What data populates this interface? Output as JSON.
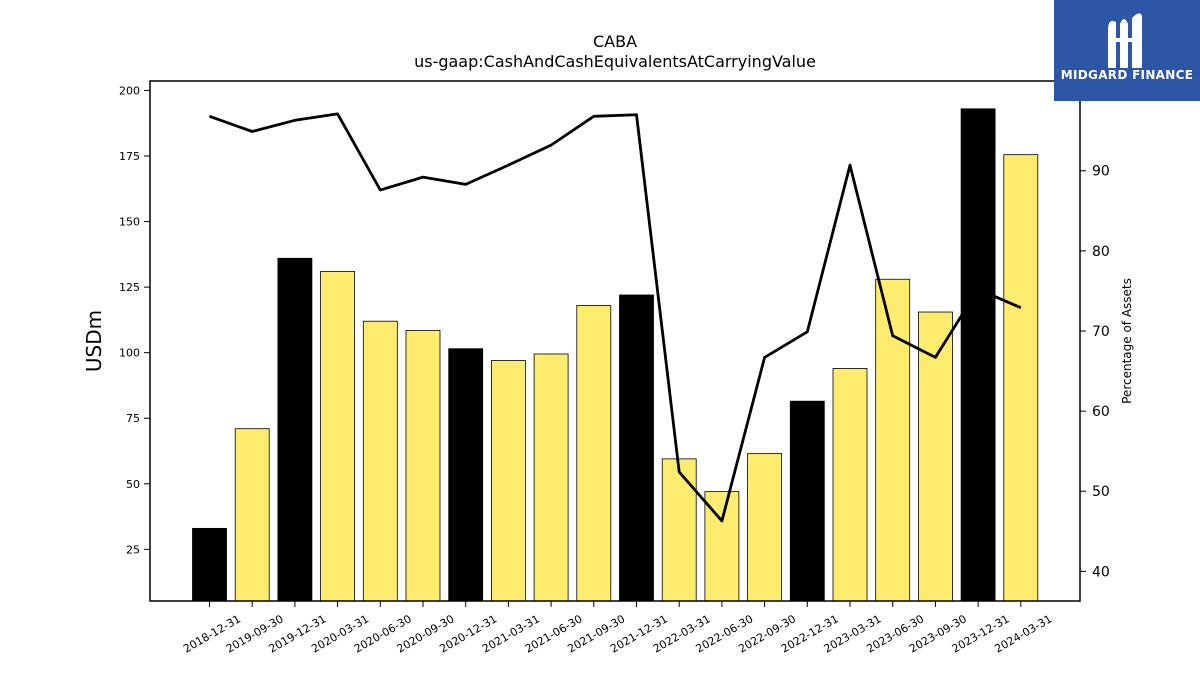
{
  "logo": {
    "text": "MIDGARD FINANCE",
    "background": "#2d56a7"
  },
  "chart_data": {
    "type": "bar",
    "title": "CABA",
    "subtitle": "us-gaap:CashAndCashEquivalentsAtCarryingValue",
    "ylabel": "USDm",
    "y2label": "Percentage of Assets",
    "categories": [
      "2018-12-31",
      "2019-09-30",
      "2019-12-31",
      "2020-03-31",
      "2020-06-30",
      "2020-09-30",
      "2020-12-31",
      "2021-03-31",
      "2021-06-30",
      "2021-09-30",
      "2021-12-31",
      "2022-03-31",
      "2022-06-30",
      "2022-09-30",
      "2022-12-31",
      "2023-03-31",
      "2023-06-30",
      "2023-09-30",
      "2023-12-31",
      "2024-03-31"
    ],
    "series": [
      {
        "kind": "bar",
        "values": [
          33,
          71,
          136,
          131,
          112,
          108.5,
          101.5,
          97,
          99.5,
          118,
          122,
          59.5,
          47,
          61.5,
          81.5,
          94,
          128,
          115.5,
          193,
          175.5
        ],
        "colors": [
          "#000000",
          "#ffec6e",
          "#000000",
          "#ffec6e",
          "#ffec6e",
          "#ffec6e",
          "#000000",
          "#ffec6e",
          "#ffec6e",
          "#ffec6e",
          "#000000",
          "#ffec6e",
          "#ffec6e",
          "#ffec6e",
          "#000000",
          "#ffec6e",
          "#ffec6e",
          "#ffec6e",
          "#000000",
          "#ffec6e"
        ]
      },
      {
        "kind": "line",
        "axis": "right",
        "color": "#000000",
        "values": [
          96.8,
          94.9,
          96.3,
          97.1,
          87.6,
          89.2,
          88.3,
          90.7,
          93.2,
          96.8,
          97.0,
          52.4,
          46.3,
          66.7,
          69.9,
          90.7,
          69.4,
          66.7,
          75.2,
          72.9
        ]
      }
    ],
    "yticks": [
      25,
      50,
      75,
      100,
      125,
      150,
      175,
      200
    ],
    "ylim": [
      5.3,
      203.6
    ],
    "y2ticks": [
      40,
      50,
      60,
      70,
      80,
      90
    ],
    "y2lim": [
      36.3,
      101.2
    ],
    "grid": false,
    "legend": "none"
  }
}
